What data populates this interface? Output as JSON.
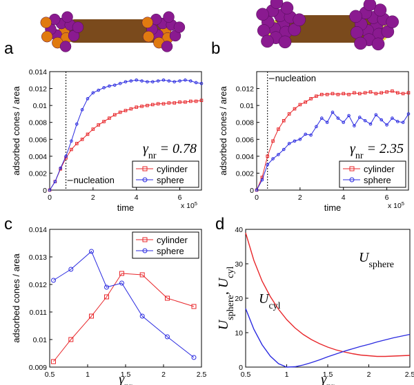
{
  "chart_data": [
    {
      "type": "line",
      "panel": "a",
      "y_label": "adsorbed cones / area",
      "x_label": "time",
      "x_multiplier": {
        "text": "x 10",
        "sup": "5"
      },
      "annotation": {
        "text": "γ",
        "sub": "nr",
        "rest": " = 0.78"
      },
      "nucleation": {
        "label": "nucleation",
        "x": 0.75
      },
      "xlim": [
        0,
        7
      ],
      "xticks": [
        0,
        2,
        4,
        6
      ],
      "ylim": [
        0,
        0.014
      ],
      "yticks": [
        0,
        0.002,
        0.004,
        0.006,
        0.008,
        0.01,
        0.012,
        0.014
      ],
      "legend": "lower right",
      "x": [
        0,
        0.25,
        0.5,
        0.75,
        1,
        1.25,
        1.5,
        1.75,
        2,
        2.25,
        2.5,
        2.75,
        3,
        3.25,
        3.5,
        3.75,
        4,
        4.25,
        4.5,
        4.75,
        5,
        5.25,
        5.5,
        5.75,
        6,
        6.25,
        6.5,
        6.75,
        7
      ],
      "series": [
        {
          "name": "cylinder",
          "color": "#e8262a",
          "marker": "square",
          "values": [
            0,
            0.001,
            0.0025,
            0.0038,
            0.0048,
            0.0055,
            0.006,
            0.0066,
            0.0072,
            0.0077,
            0.0081,
            0.0085,
            0.0089,
            0.0092,
            0.0094,
            0.0096,
            0.0098,
            0.0099,
            0.01,
            0.0101,
            0.0102,
            0.0102,
            0.0103,
            0.0103,
            0.0104,
            0.0104,
            0.0105,
            0.0105,
            0.0106
          ]
        },
        {
          "name": "sphere",
          "color": "#2a2ae0",
          "marker": "circle",
          "values": [
            0,
            0.001,
            0.0026,
            0.004,
            0.0058,
            0.0078,
            0.0095,
            0.0108,
            0.0115,
            0.0118,
            0.0121,
            0.0123,
            0.0124,
            0.0126,
            0.0128,
            0.0129,
            0.013,
            0.0129,
            0.0128,
            0.0128,
            0.0129,
            0.013,
            0.0129,
            0.0128,
            0.0129,
            0.013,
            0.0129,
            0.0127,
            0.0126
          ]
        }
      ]
    },
    {
      "type": "line",
      "panel": "b",
      "y_label": "adsorbed cones / area",
      "x_label": "time",
      "x_multiplier": {
        "text": "x 10",
        "sup": "5"
      },
      "annotation": {
        "text": "γ",
        "sub": "nr",
        "rest": " = 2.35"
      },
      "nucleation": {
        "label": "nucleation",
        "x": 0.5
      },
      "xlim": [
        0,
        7
      ],
      "xticks": [
        0,
        2,
        4,
        6
      ],
      "ylim": [
        0,
        0.014
      ],
      "yticks": [
        0,
        0.002,
        0.004,
        0.006,
        0.008,
        0.01,
        0.012
      ],
      "legend": "lower right",
      "x": [
        0,
        0.25,
        0.5,
        0.75,
        1,
        1.25,
        1.5,
        1.75,
        2,
        2.25,
        2.5,
        2.75,
        3,
        3.25,
        3.5,
        3.75,
        4,
        4.25,
        4.5,
        4.75,
        5,
        5.25,
        5.5,
        5.75,
        6,
        6.25,
        6.5,
        6.75,
        7
      ],
      "series": [
        {
          "name": "cylinder",
          "color": "#e8262a",
          "marker": "square",
          "values": [
            0,
            0.0015,
            0.004,
            0.0058,
            0.0072,
            0.0082,
            0.009,
            0.0096,
            0.0101,
            0.0104,
            0.0108,
            0.0111,
            0.0113,
            0.0113,
            0.0114,
            0.0113,
            0.0114,
            0.0113,
            0.0115,
            0.0114,
            0.0115,
            0.0116,
            0.0114,
            0.0115,
            0.0116,
            0.0117,
            0.0115,
            0.0114,
            0.0115
          ]
        },
        {
          "name": "sphere",
          "color": "#2a2ae0",
          "marker": "circle",
          "values": [
            0,
            0.0012,
            0.003,
            0.0037,
            0.0042,
            0.0048,
            0.0055,
            0.0058,
            0.006,
            0.0066,
            0.0065,
            0.0075,
            0.0085,
            0.008,
            0.0092,
            0.0085,
            0.008,
            0.0088,
            0.0076,
            0.0086,
            0.0082,
            0.0078,
            0.0089,
            0.0083,
            0.0077,
            0.0085,
            0.0081,
            0.008,
            0.009
          ]
        }
      ]
    },
    {
      "type": "line",
      "panel": "c",
      "y_label": "adsorbed cones / area",
      "x_label": {
        "text": "γ",
        "sub": "nr"
      },
      "xlim": [
        0.5,
        2.5
      ],
      "xticks": [
        0.5,
        1,
        1.5,
        2,
        2.5
      ],
      "ylim": [
        0.009,
        0.014
      ],
      "yticks": [
        0.009,
        0.01,
        0.011,
        0.012,
        0.013,
        0.014
      ],
      "legend": "upper right",
      "x": [
        0.55,
        0.78,
        1.05,
        1.25,
        1.45,
        1.72,
        2.05,
        2.4
      ],
      "series": [
        {
          "name": "cylinder",
          "color": "#e8262a",
          "marker": "square",
          "values": [
            0.0092,
            0.01,
            0.01085,
            0.01155,
            0.0124,
            0.01235,
            0.0115,
            0.0112
          ]
        },
        {
          "name": "sphere",
          "color": "#2a2ae0",
          "marker": "circle",
          "values": [
            0.01215,
            0.01255,
            0.0132,
            0.0119,
            0.01205,
            0.01085,
            0.0101,
            0.00935
          ]
        }
      ]
    },
    {
      "type": "line",
      "panel": "d",
      "y_label": {
        "text": "U",
        "sub": "sphere",
        "rest": ", U",
        "sub2": "cyl"
      },
      "x_label": {
        "text": "γ",
        "sub": "nr"
      },
      "xlim": [
        0.5,
        2.5
      ],
      "xticks": [
        0.5,
        1,
        1.5,
        2,
        2.5
      ],
      "ylim": [
        0,
        40
      ],
      "yticks": [
        0,
        10,
        20,
        30,
        40
      ],
      "x": [
        0.5,
        0.6,
        0.7,
        0.8,
        0.9,
        1,
        1.1,
        1.2,
        1.3,
        1.4,
        1.5,
        1.6,
        1.7,
        1.8,
        1.9,
        2,
        2.1,
        2.2,
        2.3,
        2.4,
        2.5
      ],
      "series": [
        {
          "name": {
            "text": "U",
            "sub": "cyl"
          },
          "color": "#e8262a",
          "values": [
            39,
            31,
            25,
            20.5,
            16.8,
            13.8,
            11.4,
            9.5,
            8,
            6.8,
            5.8,
            5,
            4.4,
            3.9,
            3.5,
            3.3,
            3.1,
            3.1,
            3.2,
            3.3,
            3.4
          ]
        },
        {
          "name": {
            "text": "U",
            "sub": "sphere"
          },
          "color": "#2a2ae0",
          "values": [
            17,
            11,
            6.5,
            3.2,
            1,
            0,
            0.1,
            0.6,
            1.3,
            2.1,
            3,
            3.8,
            4.6,
            5.3,
            6,
            6.6,
            7.3,
            7.9,
            8.5,
            9,
            9.5
          ]
        }
      ]
    }
  ]
}
